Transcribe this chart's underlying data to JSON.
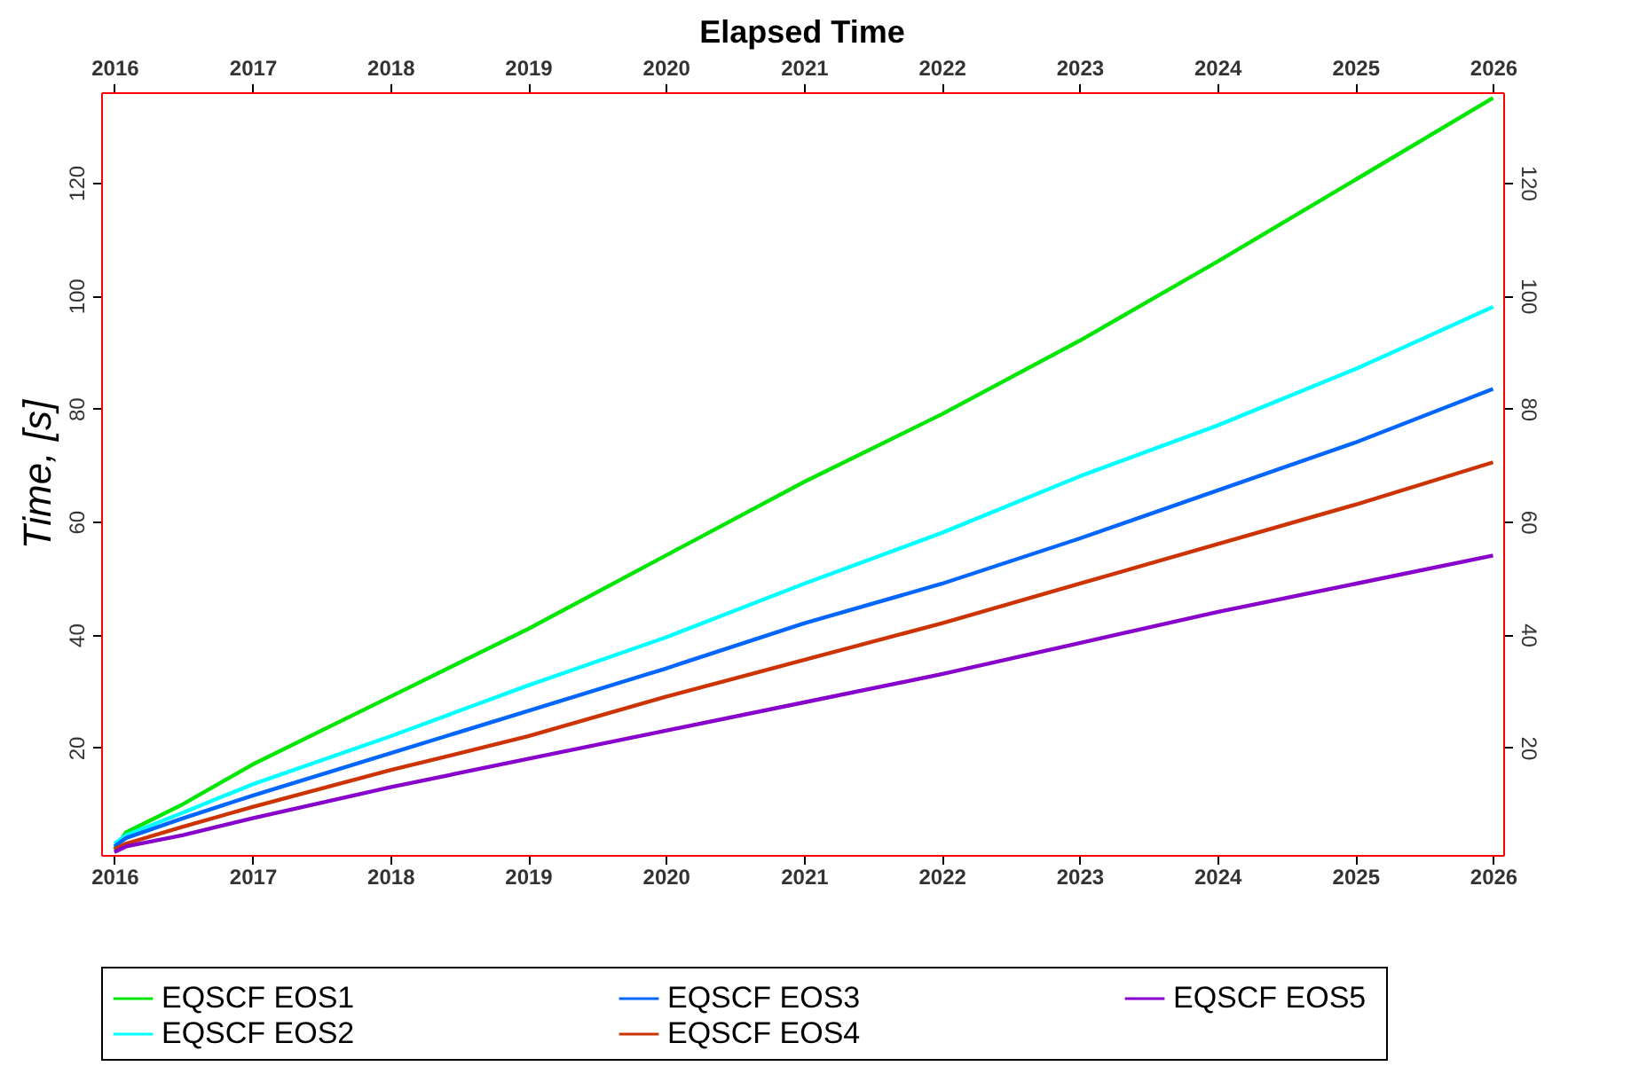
{
  "chart_data": {
    "type": "line",
    "title": "Elapsed Time",
    "ylabel": "Time, [s]",
    "x": [
      "2016-01-01",
      "2016-02-01",
      "2016-07-01",
      "2017-01-01",
      "2018-01-01",
      "2019-01-01",
      "2020-01-01",
      "2021-01-01",
      "2022-01-01",
      "2023-01-01",
      "2024-01-01",
      "2025-01-01",
      "2026-01-01"
    ],
    "series": [
      {
        "name": "EQSCF  EOS1",
        "color": "#00e600",
        "values": [
          2,
          5,
          10,
          17,
          29,
          41,
          54,
          67,
          79,
          92,
          106,
          120.5,
          135
        ]
      },
      {
        "name": "EQSCF  EOS2",
        "color": "#00ffff",
        "values": [
          3,
          4.5,
          8.5,
          13.5,
          22,
          31,
          39.5,
          49,
          58,
          68,
          77,
          87,
          98
        ]
      },
      {
        "name": "EQSCF  EOS3",
        "color": "#0066ff",
        "values": [
          2.5,
          4,
          7.5,
          11.5,
          19,
          26.5,
          34,
          42,
          49,
          57,
          65.5,
          74,
          83.5
        ]
      },
      {
        "name": "EQSCF  EOS4",
        "color": "#cc3300",
        "values": [
          2,
          3,
          6,
          9.5,
          16,
          22,
          29,
          35.5,
          42,
          49,
          56,
          63,
          70.5
        ]
      },
      {
        "name": "EQSCF  EOS5",
        "color": "#8800cc",
        "values": [
          1.5,
          2.5,
          4.5,
          7.5,
          13,
          18,
          23,
          28,
          33,
          38.5,
          44,
          49,
          54
        ]
      }
    ],
    "xlim": [
      "2015-11-27",
      "2026-01-28"
    ],
    "xticks": [
      {
        "value": "2016-01-01",
        "label": "2016"
      },
      {
        "value": "2017-01-01",
        "label": "2017"
      },
      {
        "value": "2018-01-01",
        "label": "2018"
      },
      {
        "value": "2019-01-01",
        "label": "2019"
      },
      {
        "value": "2020-01-01",
        "label": "2020"
      },
      {
        "value": "2021-01-01",
        "label": "2021"
      },
      {
        "value": "2022-01-01",
        "label": "2022"
      },
      {
        "value": "2023-01-01",
        "label": "2023"
      },
      {
        "value": "2024-01-01",
        "label": "2024"
      },
      {
        "value": "2025-01-01",
        "label": "2025"
      },
      {
        "value": "2026-01-01",
        "label": "2026"
      }
    ],
    "x2lim": [
      "2015-11-27",
      "2026-01-28"
    ],
    "x2ticks": [
      {
        "value": "2016-01-01",
        "label": "2016"
      },
      {
        "value": "2017-01-01",
        "label": "2017"
      },
      {
        "value": "2018-01-01",
        "label": "2018"
      },
      {
        "value": "2019-01-01",
        "label": "2019"
      },
      {
        "value": "2020-01-01",
        "label": "2020"
      },
      {
        "value": "2021-01-01",
        "label": "2021"
      },
      {
        "value": "2022-01-01",
        "label": "2022"
      },
      {
        "value": "2023-01-01",
        "label": "2023"
      },
      {
        "value": "2024-01-01",
        "label": "2024"
      },
      {
        "value": "2025-01-01",
        "label": "2025"
      },
      {
        "value": "2026-01-01",
        "label": "2026"
      }
    ],
    "ylim": [
      1,
      136
    ],
    "yticks": [
      20,
      40,
      60,
      80,
      100,
      120
    ],
    "y2lim": [
      1,
      136
    ],
    "y2ticks": [
      20,
      40,
      60,
      80,
      100,
      120
    ],
    "grid": false,
    "legend": "bottom",
    "line_style": "solid",
    "marker": "none"
  }
}
